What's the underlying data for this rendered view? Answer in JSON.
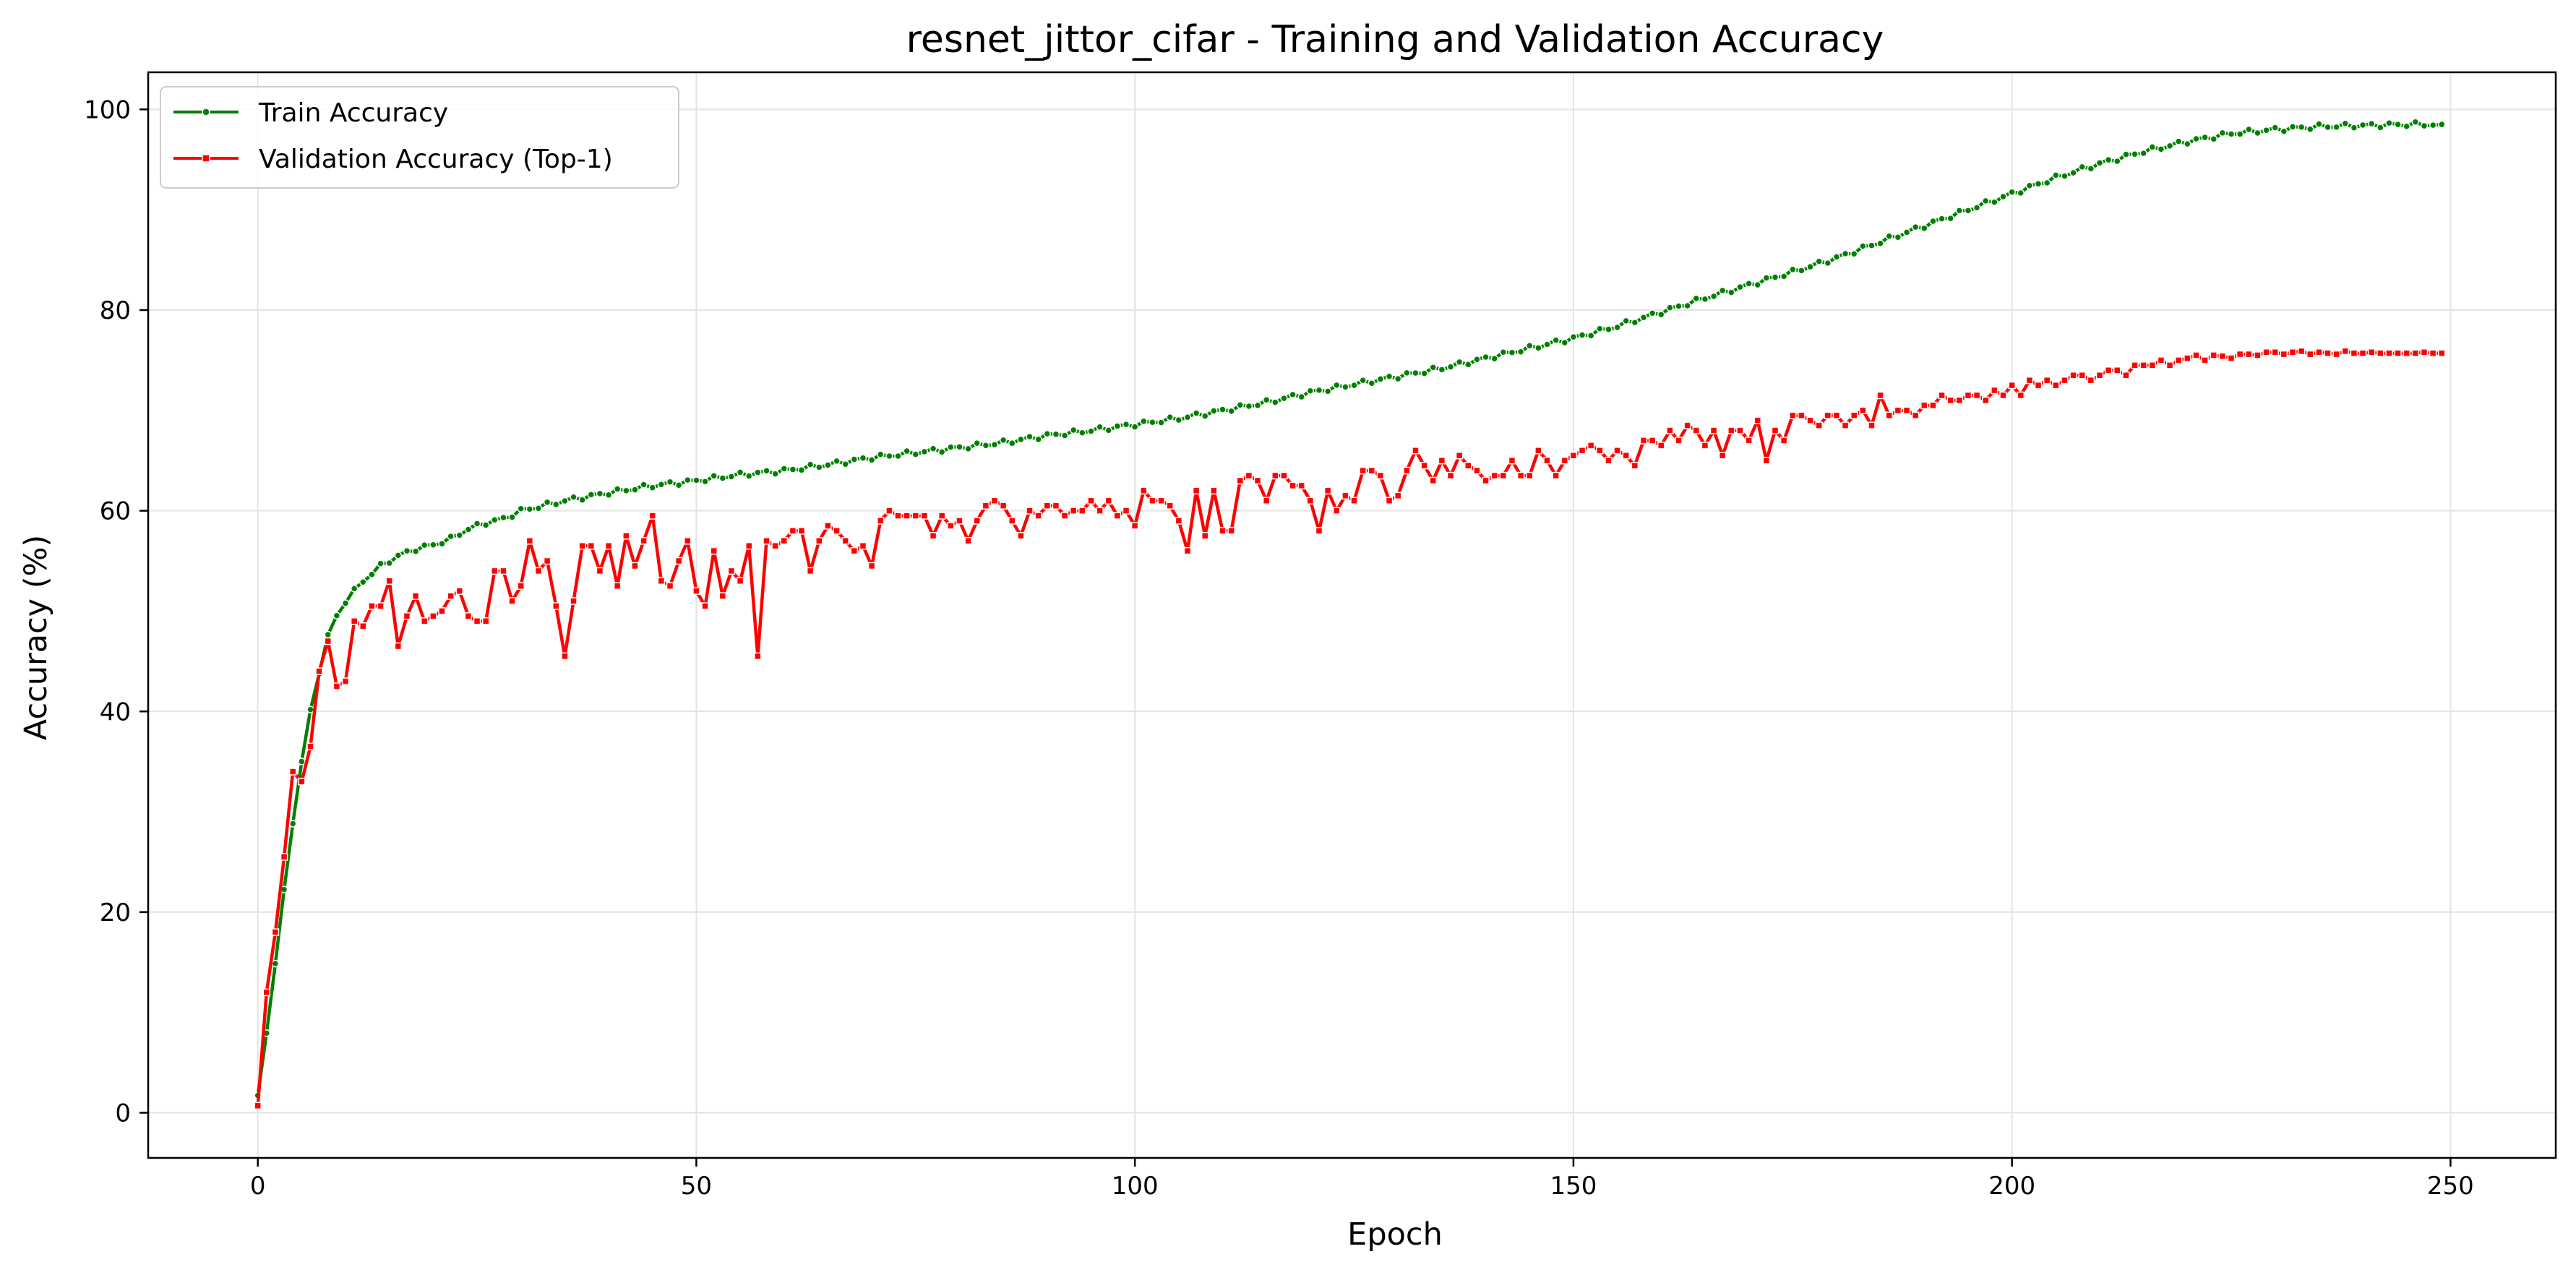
{
  "chart_data": {
    "type": "line",
    "title": "resnet_jittor_cifar - Training and Validation Accuracy",
    "xlabel": "Epoch",
    "ylabel": "Accuracy (%)",
    "xlim": [
      -12.5,
      262
    ],
    "ylim": [
      -4.5,
      103.7
    ],
    "xticks": [
      0,
      50,
      100,
      150,
      200,
      250
    ],
    "yticks": [
      0,
      20,
      40,
      60,
      80,
      100
    ],
    "grid": true,
    "legend_position": "top-left",
    "series": [
      {
        "name": "Train Accuracy",
        "color": "#008000",
        "marker": "dot",
        "anchors": [
          [
            0,
            1.5
          ],
          [
            1,
            8
          ],
          [
            2,
            15
          ],
          [
            3,
            22
          ],
          [
            4,
            29
          ],
          [
            5,
            35
          ],
          [
            6,
            40
          ],
          [
            7,
            44
          ],
          [
            8,
            47.5
          ],
          [
            9,
            49.5
          ],
          [
            10,
            51
          ],
          [
            12,
            53
          ],
          [
            14,
            54.5
          ],
          [
            16,
            55.5
          ],
          [
            18,
            56.2
          ],
          [
            20,
            56.6
          ],
          [
            22,
            57.2
          ],
          [
            24,
            58.2
          ],
          [
            26,
            58.8
          ],
          [
            28,
            59.2
          ],
          [
            30,
            60
          ],
          [
            35,
            61
          ],
          [
            40,
            61.8
          ],
          [
            45,
            62.5
          ],
          [
            50,
            63
          ],
          [
            55,
            63.6
          ],
          [
            60,
            64
          ],
          [
            65,
            64.6
          ],
          [
            70,
            65.3
          ],
          [
            75,
            65.8
          ],
          [
            80,
            66.3
          ],
          [
            85,
            66.8
          ],
          [
            90,
            67.5
          ],
          [
            95,
            68
          ],
          [
            100,
            68.6
          ],
          [
            105,
            69.2
          ],
          [
            110,
            70
          ],
          [
            115,
            70.8
          ],
          [
            120,
            71.8
          ],
          [
            125,
            72.6
          ],
          [
            130,
            73.4
          ],
          [
            135,
            74.2
          ],
          [
            140,
            75.2
          ],
          [
            145,
            76.2
          ],
          [
            150,
            77.2
          ],
          [
            155,
            78.4
          ],
          [
            160,
            79.8
          ],
          [
            165,
            81.2
          ],
          [
            170,
            82.5
          ],
          [
            175,
            83.8
          ],
          [
            180,
            85.2
          ],
          [
            185,
            86.8
          ],
          [
            190,
            88.4
          ],
          [
            195,
            90
          ],
          [
            200,
            91.6
          ],
          [
            205,
            93.2
          ],
          [
            210,
            94.6
          ],
          [
            215,
            95.8
          ],
          [
            220,
            96.8
          ],
          [
            225,
            97.6
          ],
          [
            230,
            98
          ],
          [
            235,
            98.3
          ],
          [
            240,
            98.4
          ],
          [
            245,
            98.5
          ],
          [
            249,
            98.5
          ]
        ],
        "noise": 0.25
      },
      {
        "name": "Validation Accuracy (Top-1)",
        "color": "#ff0000",
        "marker": "square",
        "anchors": [
          [
            0,
            0.7
          ],
          [
            1,
            12
          ],
          [
            2,
            18
          ],
          [
            3,
            25.5
          ],
          [
            4,
            34
          ],
          [
            5,
            33
          ],
          [
            6,
            36.5
          ],
          [
            7,
            44
          ],
          [
            8,
            47
          ],
          [
            9,
            42.5
          ],
          [
            10,
            43
          ],
          [
            11,
            49
          ],
          [
            12,
            48.5
          ],
          [
            13,
            50.5
          ],
          [
            14,
            50.5
          ],
          [
            15,
            53
          ],
          [
            16,
            46.5
          ],
          [
            17,
            49.5
          ],
          [
            18,
            51.5
          ],
          [
            19,
            49
          ],
          [
            20,
            49.5
          ],
          [
            21,
            50
          ],
          [
            22,
            51.5
          ],
          [
            23,
            52
          ],
          [
            24,
            49.5
          ],
          [
            25,
            49
          ],
          [
            26,
            49
          ],
          [
            27,
            54
          ],
          [
            28,
            54
          ],
          [
            29,
            51
          ],
          [
            30,
            52.5
          ],
          [
            31,
            57
          ],
          [
            32,
            54
          ],
          [
            33,
            55
          ],
          [
            34,
            50.5
          ],
          [
            35,
            45.5
          ],
          [
            36,
            51
          ],
          [
            37,
            56.5
          ],
          [
            38,
            56.5
          ],
          [
            39,
            54
          ],
          [
            40,
            56.5
          ],
          [
            41,
            52.5
          ],
          [
            42,
            57.5
          ],
          [
            43,
            54.5
          ],
          [
            44,
            57
          ],
          [
            45,
            59.5
          ],
          [
            46,
            53
          ],
          [
            47,
            52.5
          ],
          [
            48,
            55
          ],
          [
            49,
            57
          ],
          [
            50,
            52
          ],
          [
            51,
            50.5
          ],
          [
            52,
            56
          ],
          [
            53,
            51.5
          ],
          [
            54,
            54
          ],
          [
            55,
            53
          ],
          [
            56,
            56.5
          ],
          [
            57,
            45.5
          ],
          [
            58,
            57
          ],
          [
            59,
            56.5
          ],
          [
            60,
            57
          ],
          [
            61,
            58
          ],
          [
            62,
            58
          ],
          [
            63,
            54
          ],
          [
            64,
            57
          ],
          [
            65,
            58.5
          ],
          [
            66,
            58
          ],
          [
            67,
            57
          ],
          [
            68,
            56
          ],
          [
            69,
            56.5
          ],
          [
            70,
            54.5
          ],
          [
            71,
            59
          ],
          [
            72,
            60
          ],
          [
            73,
            59.5
          ],
          [
            74,
            59.5
          ],
          [
            75,
            59.5
          ],
          [
            76,
            59.5
          ],
          [
            77,
            57.5
          ],
          [
            78,
            59.5
          ],
          [
            79,
            58.5
          ],
          [
            80,
            59
          ],
          [
            81,
            57
          ],
          [
            82,
            59
          ],
          [
            83,
            60.5
          ],
          [
            84,
            61
          ],
          [
            85,
            60.5
          ],
          [
            86,
            59
          ],
          [
            87,
            57.5
          ],
          [
            88,
            60
          ],
          [
            89,
            59.5
          ],
          [
            90,
            60.5
          ],
          [
            91,
            60.5
          ],
          [
            92,
            59.5
          ],
          [
            93,
            60
          ],
          [
            94,
            60
          ],
          [
            95,
            61
          ],
          [
            96,
            60
          ],
          [
            97,
            61
          ],
          [
            98,
            59.5
          ],
          [
            99,
            60
          ],
          [
            100,
            58.5
          ],
          [
            101,
            62
          ],
          [
            102,
            61
          ],
          [
            103,
            61
          ],
          [
            104,
            60.5
          ],
          [
            105,
            59
          ],
          [
            106,
            56
          ],
          [
            107,
            62
          ],
          [
            108,
            57.5
          ],
          [
            109,
            62
          ],
          [
            110,
            58
          ],
          [
            111,
            58
          ],
          [
            112,
            63
          ],
          [
            113,
            63.5
          ],
          [
            114,
            63
          ],
          [
            115,
            61
          ],
          [
            116,
            63.5
          ],
          [
            117,
            63.5
          ],
          [
            118,
            62.5
          ],
          [
            119,
            62.5
          ],
          [
            120,
            61
          ],
          [
            121,
            58
          ],
          [
            122,
            62
          ],
          [
            123,
            60
          ],
          [
            124,
            61.5
          ],
          [
            125,
            61
          ],
          [
            126,
            64
          ],
          [
            127,
            64
          ],
          [
            128,
            63.5
          ],
          [
            129,
            61
          ],
          [
            130,
            61.5
          ],
          [
            131,
            64
          ],
          [
            132,
            66
          ],
          [
            133,
            64.5
          ],
          [
            134,
            63
          ],
          [
            135,
            65
          ],
          [
            136,
            63.5
          ],
          [
            137,
            65.5
          ],
          [
            138,
            64.5
          ],
          [
            139,
            64
          ],
          [
            140,
            63
          ],
          [
            141,
            63.5
          ],
          [
            142,
            63.5
          ],
          [
            143,
            65
          ],
          [
            144,
            63.5
          ],
          [
            145,
            63.5
          ],
          [
            146,
            66
          ],
          [
            147,
            65
          ],
          [
            148,
            63.5
          ],
          [
            149,
            65
          ],
          [
            150,
            65.5
          ],
          [
            151,
            66
          ],
          [
            152,
            66.5
          ],
          [
            153,
            66
          ],
          [
            154,
            65
          ],
          [
            155,
            66
          ],
          [
            156,
            65.5
          ],
          [
            157,
            64.5
          ],
          [
            158,
            67
          ],
          [
            159,
            67
          ],
          [
            160,
            66.5
          ],
          [
            161,
            68
          ],
          [
            162,
            67
          ],
          [
            163,
            68.5
          ],
          [
            164,
            68
          ],
          [
            165,
            66.5
          ],
          [
            166,
            68
          ],
          [
            167,
            65.5
          ],
          [
            168,
            68
          ],
          [
            169,
            68
          ],
          [
            170,
            67
          ],
          [
            171,
            69
          ],
          [
            172,
            65
          ],
          [
            173,
            68
          ],
          [
            174,
            67
          ],
          [
            175,
            69.5
          ],
          [
            176,
            69.5
          ],
          [
            177,
            69
          ],
          [
            178,
            68.5
          ],
          [
            179,
            69.5
          ],
          [
            180,
            69.5
          ],
          [
            181,
            68.5
          ],
          [
            182,
            69.5
          ],
          [
            183,
            70
          ],
          [
            184,
            68.5
          ],
          [
            185,
            71.5
          ],
          [
            186,
            69.5
          ],
          [
            187,
            70
          ],
          [
            188,
            70
          ],
          [
            189,
            69.5
          ],
          [
            190,
            70.5
          ],
          [
            191,
            70.5
          ],
          [
            192,
            71.5
          ],
          [
            193,
            71
          ],
          [
            194,
            71
          ],
          [
            195,
            71.5
          ],
          [
            196,
            71.5
          ],
          [
            197,
            71
          ],
          [
            198,
            72
          ],
          [
            199,
            71.5
          ],
          [
            200,
            72.5
          ],
          [
            201,
            71.5
          ],
          [
            202,
            73
          ],
          [
            203,
            72.5
          ],
          [
            204,
            73
          ],
          [
            205,
            72.5
          ],
          [
            206,
            73
          ],
          [
            207,
            73.5
          ],
          [
            208,
            73.5
          ],
          [
            209,
            73
          ],
          [
            210,
            73.5
          ],
          [
            211,
            74
          ],
          [
            212,
            74
          ],
          [
            213,
            73.5
          ],
          [
            214,
            74.5
          ],
          [
            215,
            74.5
          ],
          [
            216,
            74.5
          ],
          [
            217,
            75
          ],
          [
            218,
            74.5
          ],
          [
            219,
            75
          ],
          [
            220,
            75.2
          ],
          [
            221,
            75.5
          ],
          [
            222,
            75
          ],
          [
            223,
            75.5
          ],
          [
            224,
            75.4
          ],
          [
            225,
            75.2
          ],
          [
            226,
            75.6
          ],
          [
            227,
            75.6
          ],
          [
            228,
            75.5
          ],
          [
            229,
            75.8
          ],
          [
            230,
            75.8
          ],
          [
            231,
            75.6
          ],
          [
            232,
            75.8
          ],
          [
            233,
            75.9
          ],
          [
            234,
            75.6
          ],
          [
            235,
            75.8
          ],
          [
            236,
            75.7
          ],
          [
            237,
            75.6
          ],
          [
            238,
            75.9
          ],
          [
            239,
            75.7
          ],
          [
            240,
            75.7
          ],
          [
            241,
            75.8
          ],
          [
            242,
            75.7
          ],
          [
            243,
            75.7
          ],
          [
            244,
            75.7
          ],
          [
            245,
            75.7
          ],
          [
            246,
            75.7
          ],
          [
            247,
            75.8
          ],
          [
            248,
            75.7
          ],
          [
            249,
            75.7
          ]
        ],
        "noise": 0
      }
    ]
  }
}
